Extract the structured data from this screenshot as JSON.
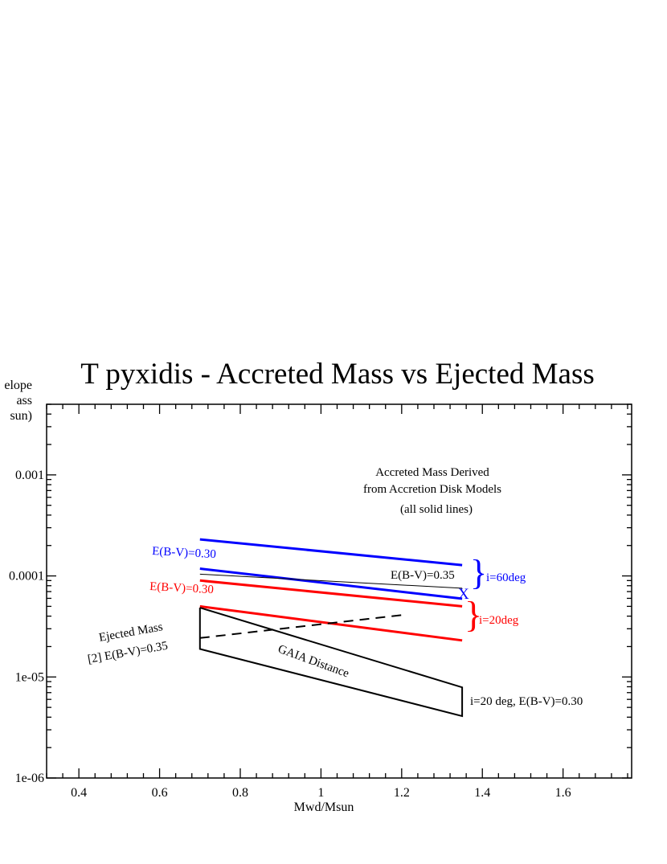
{
  "chart_data": {
    "type": "line",
    "title": "T pyxidis - Accreted Mass vs Ejected Mass",
    "xlabel": "Mwd/Msun",
    "ylabel": [
      "elope",
      "ass",
      "sun)"
    ],
    "xlim": [
      0.32,
      1.77
    ],
    "ylim": [
      1e-06,
      0.005
    ],
    "yscale": "log",
    "x_ticks": [
      "0.4",
      "0.6",
      "0.8",
      "1",
      "1.2",
      "1.4",
      "1.6"
    ],
    "y_ticks": [
      "0.001",
      "0.0001",
      "1e-05",
      "1e-06"
    ],
    "grid": false,
    "colors": {
      "blue": "#0000ff",
      "red": "#ff0000",
      "black": "#000000"
    },
    "series": [
      {
        "color": "#0000ff",
        "width": 3,
        "style": "solid",
        "x": [
          0.7,
          1.35
        ],
        "y": [
          0.00023,
          0.000128
        ]
      },
      {
        "color": "#0000ff",
        "width": 3,
        "style": "solid",
        "x": [
          0.7,
          1.35
        ],
        "y": [
          0.000118,
          5.95e-05
        ]
      },
      {
        "color": "#000000",
        "width": 1,
        "style": "solid",
        "x": [
          0.7,
          1.35
        ],
        "y": [
          0.000104,
          7.55e-05
        ]
      },
      {
        "color": "#ff0000",
        "width": 3,
        "style": "solid",
        "x": [
          0.7,
          1.35
        ],
        "y": [
          9e-05,
          5e-05
        ]
      },
      {
        "color": "#ff0000",
        "width": 3,
        "style": "solid",
        "x": [
          0.7,
          1.35
        ],
        "y": [
          5e-05,
          2.3e-05
        ]
      },
      {
        "color": "#000000",
        "width": 2,
        "style": "dashed",
        "x": [
          0.7,
          1.2
        ],
        "y": [
          2.43e-05,
          4.1e-05
        ]
      },
      {
        "color": "#000000",
        "width": 2,
        "style": "solid",
        "x": [
          0.7,
          0.7,
          1.35,
          1.35,
          0.7
        ],
        "y": [
          4.85e-05,
          1.89e-05,
          4.1e-06,
          7.9e-06,
          4.85e-05
        ]
      }
    ],
    "annotations": {
      "accreted_line1": "Accreted Mass Derived",
      "accreted_line2": "from Accretion Disk Models",
      "accreted_line3": "(all solid lines)",
      "blue_ebv": "E(B-V)=0.30",
      "red_ebv": "E(B-V)=0.30",
      "black_ebv": "E(B-V)=0.35",
      "i60": "i=60deg",
      "i20": "i=20deg",
      "x_marker": "X",
      "ejected_line1": "Ejected Mass",
      "ejected_line2": "[2] E(B-V)=0.35",
      "gaia": "GAIA Distance",
      "gaia_params": "i=20 deg,  E(B-V)=0.30"
    }
  }
}
